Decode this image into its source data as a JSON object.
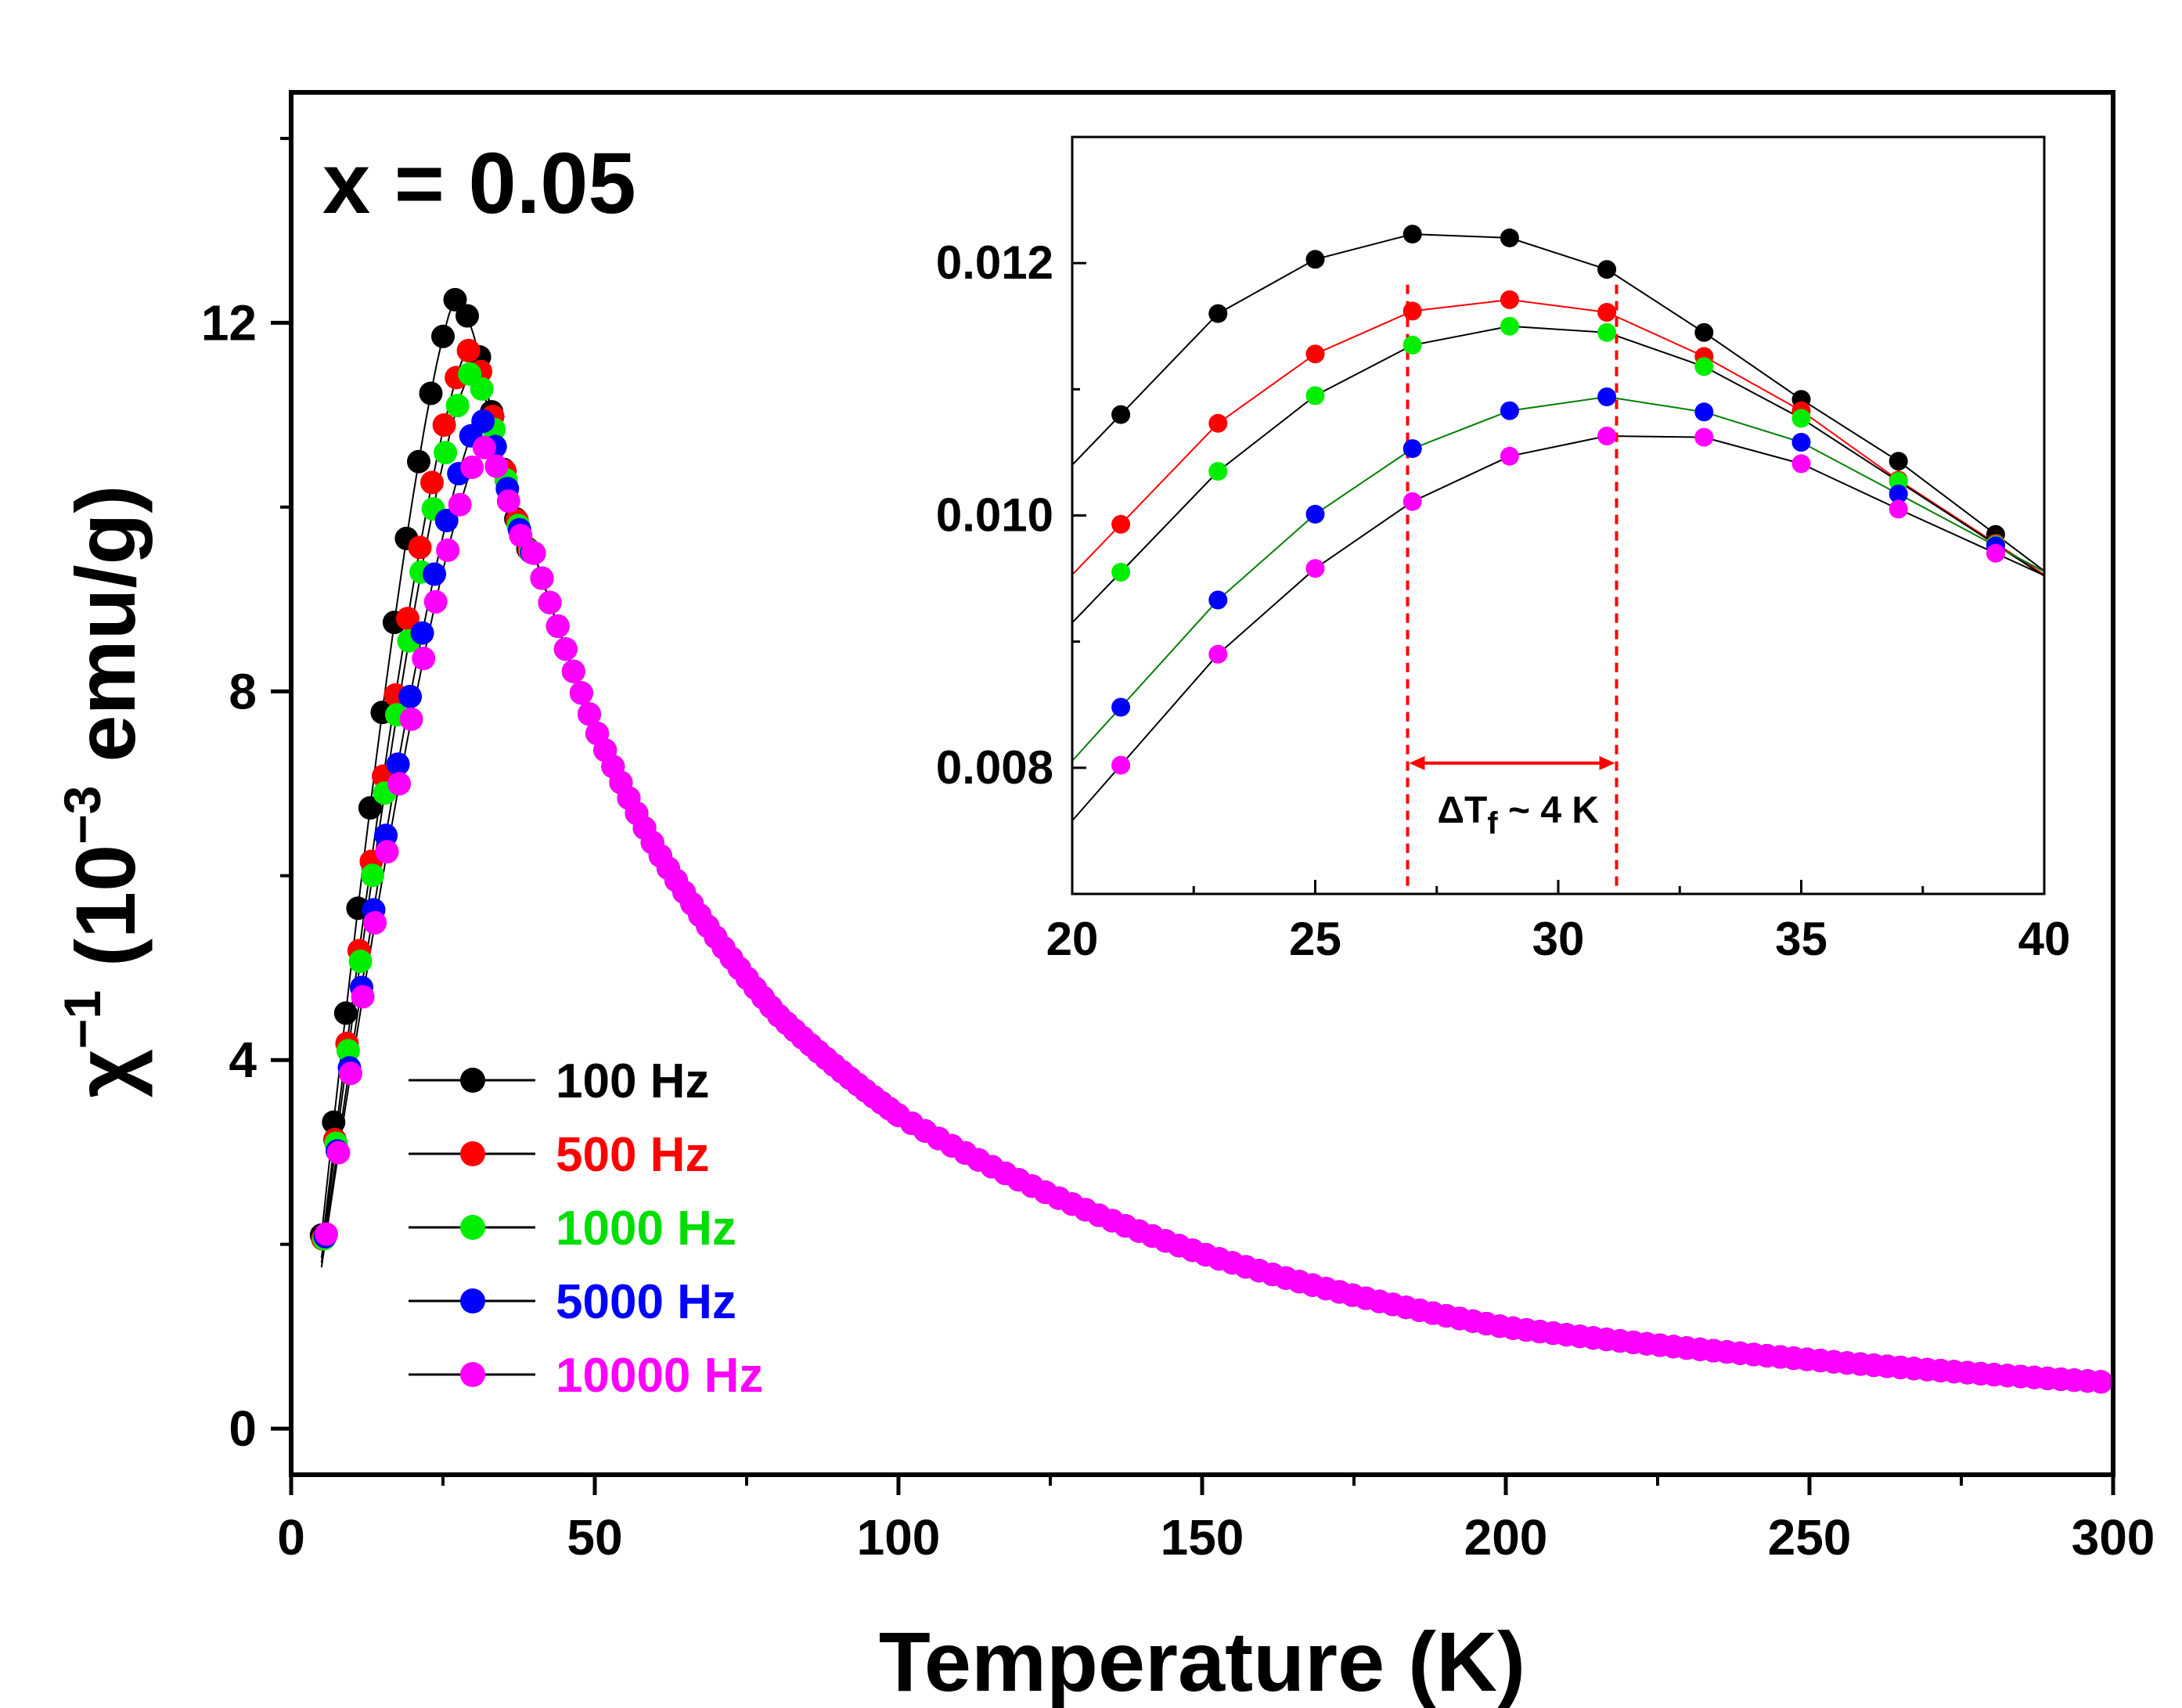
{
  "chart_data": [
    {
      "type": "scatter",
      "title": "",
      "annotation": "x = 0.05",
      "xlabel": "Temperature (K)",
      "ylabel_main": "χ",
      "ylabel_sup": "−1",
      "ylabel_unit_open": " (10",
      "ylabel_unit_sup": "−3",
      "ylabel_unit_close": " emu/g)",
      "xlim": [
        0,
        300
      ],
      "ylim": [
        -0.5,
        14.5
      ],
      "xticks": [
        0,
        50,
        100,
        150,
        200,
        250,
        300
      ],
      "xtick_labels": [
        "0",
        "50",
        "100",
        "150",
        "200",
        "250",
        "300"
      ],
      "yticks": [
        0,
        4,
        8,
        12
      ],
      "ytick_labels": [
        "0",
        "4",
        "8",
        "12"
      ],
      "legend": [
        "100 Hz",
        "500 Hz",
        "1000 Hz",
        "5000 Hz",
        "10000 Hz"
      ],
      "colors": [
        "#000000",
        "#ff0000",
        "#00ee00",
        "#0000ff",
        "#ff00ff"
      ],
      "series": [
        {
          "name": "100 Hz",
          "peak_T": 27,
          "peak_value": 12.25
        },
        {
          "name": "500 Hz",
          "peak_T": 29,
          "peak_value": 11.7
        },
        {
          "name": "1000 Hz",
          "peak_T": 29.5,
          "peak_value": 11.45
        },
        {
          "name": "5000 Hz",
          "peak_T": 31,
          "peak_value": 10.95
        },
        {
          "name": "10000 Hz",
          "peak_T": 31.5,
          "peak_value": 10.65
        }
      ],
      "common_tail": {
        "x": [
          40,
          50,
          60,
          80,
          100,
          150,
          200,
          250,
          300
        ],
        "values": [
          9.5,
          7.6,
          6.3,
          4.5,
          3.4,
          1.9,
          1.1,
          0.75,
          0.5
        ]
      },
      "rising_edge_start": {
        "x": 5,
        "values": [
          2.1,
          1.95,
          1.85,
          1.8,
          1.75
        ]
      }
    },
    {
      "type": "line",
      "title": "",
      "xlim": [
        20,
        40
      ],
      "ylim": [
        0.007,
        0.013
      ],
      "xticks": [
        20,
        25,
        30,
        35,
        40
      ],
      "xtick_labels": [
        "20",
        "25",
        "30",
        "35",
        "40"
      ],
      "yticks": [
        0.008,
        0.01,
        0.012
      ],
      "ytick_labels": [
        "0.008",
        "0.010",
        "0.012"
      ],
      "x": [
        21,
        23,
        25,
        27,
        29,
        31,
        33,
        35,
        37,
        39
      ],
      "series": [
        {
          "name": "100 Hz",
          "values": [
            0.0108,
            0.0116,
            0.01203,
            0.01223,
            0.0122,
            0.01195,
            0.01145,
            0.01092,
            0.01043,
            0.00985
          ]
        },
        {
          "name": "500 Hz",
          "values": [
            0.00993,
            0.01073,
            0.01128,
            0.01162,
            0.01171,
            0.01161,
            0.01126,
            0.01083,
            0.01028,
            0.00978
          ]
        },
        {
          "name": "1000 Hz",
          "values": [
            0.00955,
            0.01035,
            0.01095,
            0.01135,
            0.0115,
            0.01145,
            0.01118,
            0.01077,
            0.01027,
            0.00977
          ]
        },
        {
          "name": "5000 Hz",
          "values": [
            0.00848,
            0.00933,
            0.01001,
            0.01053,
            0.01083,
            0.01094,
            0.01082,
            0.01058,
            0.01017,
            0.00976
          ]
        },
        {
          "name": "10000 Hz",
          "values": [
            0.00802,
            0.0089,
            0.00958,
            0.01011,
            0.01047,
            0.01063,
            0.01062,
            0.01041,
            0.01005,
            0.0097
          ]
        }
      ],
      "series_line_colors": [
        "#000000",
        "#ff0000",
        "#000000",
        "#008000",
        "#000000"
      ],
      "markers": [
        "100 Hz",
        "500 Hz",
        "1000 Hz",
        "5000 Hz",
        "10000 Hz"
      ],
      "vlines": [
        26.9,
        31.2
      ],
      "annotation_arrow": {
        "from": 26.9,
        "to": 31.2,
        "y": 0.008
      },
      "annotation_text_main": "ΔT",
      "annotation_text_sub": "f",
      "annotation_text_tail": " ~ 4 K"
    }
  ]
}
